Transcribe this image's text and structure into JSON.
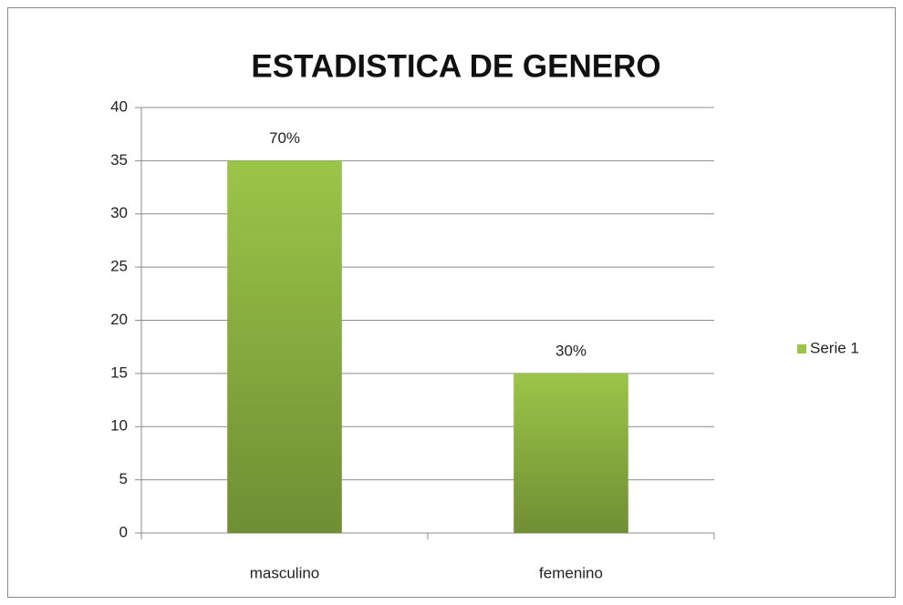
{
  "chart_data": {
    "type": "bar",
    "title": "ESTADISTICA DE GENERO",
    "categories": [
      "masculino",
      "femenino"
    ],
    "series": [
      {
        "name": "Serie 1",
        "color": "#9bc548",
        "values": [
          35,
          15
        ],
        "value_labels": [
          "70%",
          "30%"
        ]
      }
    ],
    "ylim": [
      0,
      40
    ],
    "yticks": [
      0,
      5,
      10,
      15,
      20,
      25,
      30,
      35,
      40
    ],
    "grid": true,
    "legend": "right"
  }
}
